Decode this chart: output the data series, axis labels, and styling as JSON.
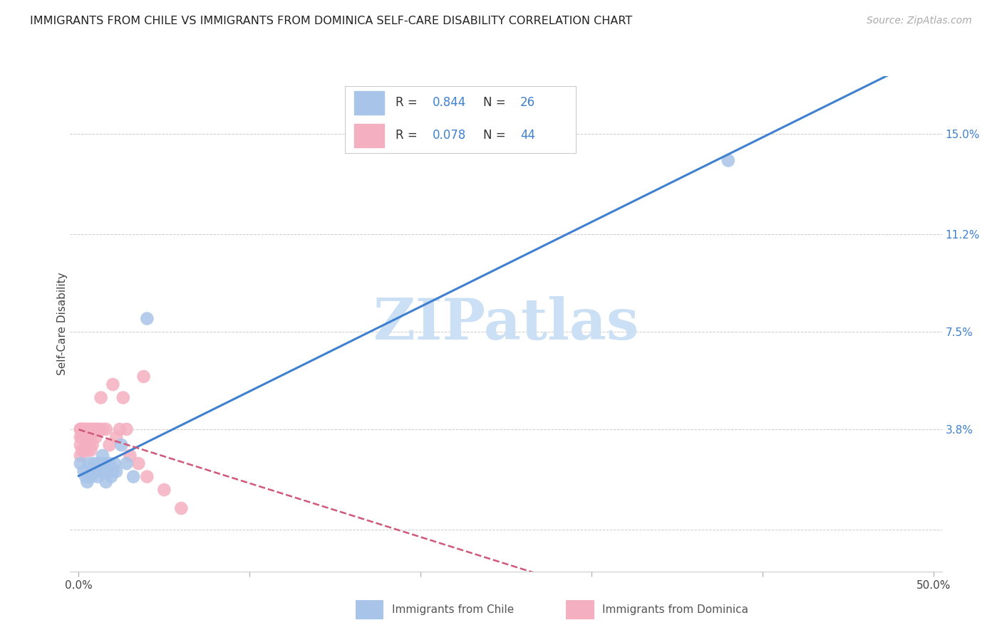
{
  "title": "IMMIGRANTS FROM CHILE VS IMMIGRANTS FROM DOMINICA SELF-CARE DISABILITY CORRELATION CHART",
  "source": "Source: ZipAtlas.com",
  "ylabel": "Self-Care Disability",
  "y_tick_labels_right": [
    "",
    "3.8%",
    "7.5%",
    "11.2%",
    "15.0%"
  ],
  "y_tick_vals_right": [
    0.0,
    0.038,
    0.075,
    0.112,
    0.15
  ],
  "xlim": [
    -0.005,
    0.505
  ],
  "ylim": [
    -0.016,
    0.172
  ],
  "chile_R": "0.844",
  "chile_N": "26",
  "dominica_R": "0.078",
  "dominica_N": "44",
  "chile_color": "#a8c4e8",
  "chile_line_color": "#4080d0",
  "dominica_color": "#f4b0c0",
  "dominica_line_color": "#d05878",
  "watermark_color": "#cce0f5",
  "chile_points_x": [
    0.001,
    0.003,
    0.004,
    0.005,
    0.006,
    0.007,
    0.008,
    0.009,
    0.01,
    0.011,
    0.012,
    0.013,
    0.014,
    0.015,
    0.016,
    0.017,
    0.018,
    0.019,
    0.02,
    0.021,
    0.022,
    0.025,
    0.028,
    0.032,
    0.04,
    0.38
  ],
  "chile_points_y": [
    0.025,
    0.022,
    0.02,
    0.018,
    0.025,
    0.02,
    0.022,
    0.025,
    0.022,
    0.02,
    0.025,
    0.022,
    0.028,
    0.025,
    0.018,
    0.022,
    0.025,
    0.02,
    0.022,
    0.025,
    0.022,
    0.032,
    0.025,
    0.02,
    0.08,
    0.14
  ],
  "dominica_points_x": [
    0.001,
    0.001,
    0.001,
    0.001,
    0.001,
    0.002,
    0.002,
    0.002,
    0.002,
    0.003,
    0.003,
    0.003,
    0.004,
    0.004,
    0.005,
    0.005,
    0.005,
    0.006,
    0.006,
    0.007,
    0.007,
    0.007,
    0.008,
    0.008,
    0.009,
    0.01,
    0.01,
    0.011,
    0.012,
    0.013,
    0.014,
    0.016,
    0.018,
    0.02,
    0.022,
    0.024,
    0.026,
    0.028,
    0.03,
    0.035,
    0.038,
    0.04,
    0.05,
    0.06
  ],
  "dominica_points_y": [
    0.038,
    0.035,
    0.032,
    0.028,
    0.038,
    0.038,
    0.035,
    0.03,
    0.038,
    0.038,
    0.035,
    0.03,
    0.038,
    0.035,
    0.038,
    0.035,
    0.03,
    0.038,
    0.032,
    0.038,
    0.035,
    0.03,
    0.038,
    0.032,
    0.038,
    0.038,
    0.035,
    0.038,
    0.038,
    0.05,
    0.038,
    0.038,
    0.032,
    0.055,
    0.035,
    0.038,
    0.05,
    0.038,
    0.028,
    0.025,
    0.058,
    0.02,
    0.015,
    0.008
  ],
  "background_color": "#ffffff",
  "grid_color": "#cccccc"
}
